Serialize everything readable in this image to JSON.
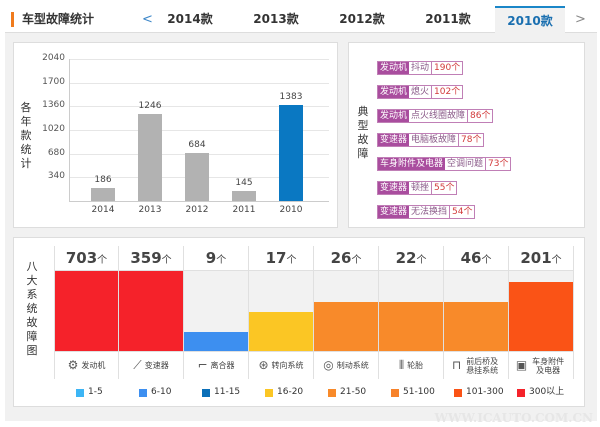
{
  "header": {
    "title": "车型故障统计",
    "prev": "<",
    "next": ">",
    "tabs": [
      "2014款",
      "2013款",
      "2012款",
      "2011款",
      "2010款"
    ],
    "active_tab": "2010款"
  },
  "chart_data": {
    "type": "bar",
    "ylabel": "各年款统计",
    "categories": [
      "2014",
      "2013",
      "2012",
      "2011",
      "2010"
    ],
    "values": [
      186,
      1246,
      684,
      145,
      1383
    ],
    "yticks": [
      340,
      680,
      1020,
      1360,
      1700,
      2040
    ],
    "ylim": [
      0,
      2040
    ],
    "highlight": "2010",
    "colors": {
      "default": "#b2b2b2",
      "highlight": "#0a78c2"
    }
  },
  "typical": {
    "label": "典型故障",
    "items": [
      {
        "system": "发动机",
        "fault": "抖动",
        "count": "190个"
      },
      {
        "system": "发动机",
        "fault": "熄火",
        "count": "102个"
      },
      {
        "system": "发动机",
        "fault": "点火线圈故障",
        "count": "86个"
      },
      {
        "system": "变速器",
        "fault": "电脑板故障",
        "count": "78个"
      },
      {
        "system": "车身附件及电器",
        "fault": "空调问题",
        "count": "73个"
      },
      {
        "system": "变速器",
        "fault": "顿挫",
        "count": "55个"
      },
      {
        "system": "变速器",
        "fault": "无法换挡",
        "count": "54个"
      }
    ]
  },
  "systems": {
    "label": "八大系统故障图",
    "unit": "个",
    "items": [
      {
        "name": "发动机",
        "count": "703",
        "level": 1.0,
        "color": "#f5222a",
        "icon": "engine-icon"
      },
      {
        "name": "变速器",
        "count": "359",
        "level": 1.0,
        "color": "#f5222a",
        "icon": "gear-shift-icon"
      },
      {
        "name": "离合器",
        "count": "9",
        "level": 0.24,
        "color": "#3d8ff0",
        "icon": "clutch-pedal-icon"
      },
      {
        "name": "转向系统",
        "count": "17",
        "level": 0.49,
        "color": "#fbc624",
        "icon": "steering-wheel-icon"
      },
      {
        "name": "制动系统",
        "count": "26",
        "level": 0.61,
        "color": "#f88a2a",
        "icon": "brake-disc-icon"
      },
      {
        "name": "轮胎",
        "count": "22",
        "level": 0.61,
        "color": "#f88a2a",
        "icon": "tire-icon"
      },
      {
        "name": "前后桥及悬挂系统",
        "count": "46",
        "level": 0.61,
        "color": "#f88a2a",
        "icon": "axle-icon"
      },
      {
        "name": "车身附件及电器",
        "count": "201",
        "level": 0.86,
        "color": "#fa5316",
        "icon": "battery-icon"
      }
    ]
  },
  "legend": [
    {
      "label": "1-5",
      "color": "#3cb5f5"
    },
    {
      "label": "6-10",
      "color": "#3d8ff0"
    },
    {
      "label": "11-15",
      "color": "#0b6fb8"
    },
    {
      "label": "16-20",
      "color": "#fbc624"
    },
    {
      "label": "21-50",
      "color": "#f88a2a"
    },
    {
      "label": "51-100",
      "color": "#f7822a"
    },
    {
      "label": "101-300",
      "color": "#fa5316"
    },
    {
      "label": "300以上",
      "color": "#f5222a"
    }
  ],
  "watermark": "WWW.ICAUTO.COM.CN"
}
